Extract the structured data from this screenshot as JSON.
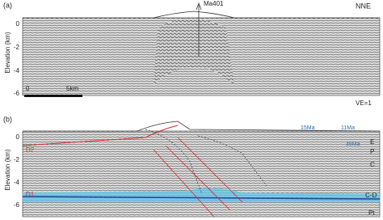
{
  "panel_a": {
    "label": "(a)",
    "well": "Ma401",
    "direction": "NNE",
    "axis_title": "Elevation (km)",
    "ticks": [
      "0",
      "-2",
      "-4",
      "-6"
    ],
    "scale_bar": {
      "start": "0",
      "end": "5km"
    },
    "exaggeration": "VE=1"
  },
  "panel_b": {
    "label": "(b)",
    "axis_title": "Elevation (km)",
    "ticks": [
      "0",
      "-2",
      "-4",
      "-6"
    ],
    "detachments": [
      "D2",
      "D1"
    ],
    "ages": [
      "15Ma",
      "11Ma",
      "35Ma"
    ],
    "units": [
      "E",
      "P",
      "C",
      "C-D",
      "Pt"
    ]
  }
}
